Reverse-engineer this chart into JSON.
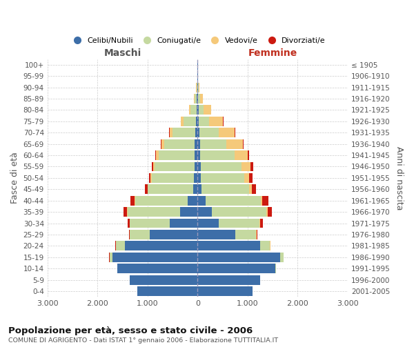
{
  "age_groups": [
    "0-4",
    "5-9",
    "10-14",
    "15-19",
    "20-24",
    "25-29",
    "30-34",
    "35-39",
    "40-44",
    "45-49",
    "50-54",
    "55-59",
    "60-64",
    "65-69",
    "70-74",
    "75-79",
    "80-84",
    "85-89",
    "90-94",
    "95-99",
    "100+"
  ],
  "birth_years": [
    "2001-2005",
    "1996-2000",
    "1991-1995",
    "1986-1990",
    "1981-1985",
    "1976-1980",
    "1971-1975",
    "1966-1970",
    "1961-1965",
    "1956-1960",
    "1951-1955",
    "1946-1950",
    "1941-1945",
    "1936-1940",
    "1931-1935",
    "1926-1930",
    "1921-1925",
    "1916-1920",
    "1911-1915",
    "1906-1910",
    "≤ 1905"
  ],
  "male_celibe": [
    1200,
    1350,
    1600,
    1700,
    1450,
    950,
    550,
    350,
    200,
    90,
    70,
    60,
    60,
    60,
    50,
    30,
    20,
    15,
    10,
    5,
    5
  ],
  "male_coniugato": [
    2,
    5,
    10,
    60,
    180,
    400,
    800,
    1050,
    1050,
    900,
    850,
    800,
    720,
    600,
    450,
    250,
    120,
    40,
    10,
    0,
    0
  ],
  "male_vedovo": [
    0,
    0,
    0,
    0,
    1,
    2,
    2,
    5,
    5,
    10,
    20,
    30,
    50,
    55,
    60,
    50,
    30,
    15,
    5,
    0,
    0
  ],
  "male_divorziato": [
    0,
    0,
    0,
    2,
    8,
    20,
    40,
    70,
    80,
    50,
    35,
    30,
    20,
    15,
    10,
    5,
    5,
    0,
    0,
    0,
    0
  ],
  "female_celibe": [
    1100,
    1250,
    1550,
    1650,
    1250,
    750,
    420,
    280,
    160,
    80,
    65,
    60,
    55,
    50,
    40,
    30,
    20,
    15,
    10,
    5,
    5
  ],
  "female_coniugato": [
    2,
    5,
    15,
    70,
    200,
    420,
    820,
    1100,
    1100,
    950,
    870,
    820,
    680,
    530,
    380,
    200,
    100,
    30,
    10,
    0,
    0
  ],
  "female_vedovo": [
    0,
    0,
    0,
    1,
    2,
    5,
    10,
    20,
    30,
    60,
    100,
    180,
    270,
    320,
    320,
    280,
    150,
    60,
    20,
    5,
    0
  ],
  "female_divorziato": [
    0,
    0,
    0,
    3,
    10,
    25,
    50,
    90,
    120,
    80,
    60,
    50,
    30,
    20,
    10,
    5,
    5,
    0,
    0,
    0,
    0
  ],
  "color_celibe": "#3d6ea8",
  "color_coniugato": "#c5d9a0",
  "color_vedovo": "#f5c97a",
  "color_divorziato": "#cc1a10",
  "xlim": 3000,
  "title": "Popolazione per età, sesso e stato civile - 2006",
  "subtitle": "COMUNE DI AGRIGENTO - Dati ISTAT 1° gennaio 2006 - Elaborazione TUTTITALIA.IT",
  "ylabel_left": "Fasce di età",
  "ylabel_right": "Anni di nascita",
  "xlabel_left": "Maschi",
  "xlabel_right": "Femmine",
  "bg_color": "#ffffff",
  "grid_color": "#cccccc"
}
